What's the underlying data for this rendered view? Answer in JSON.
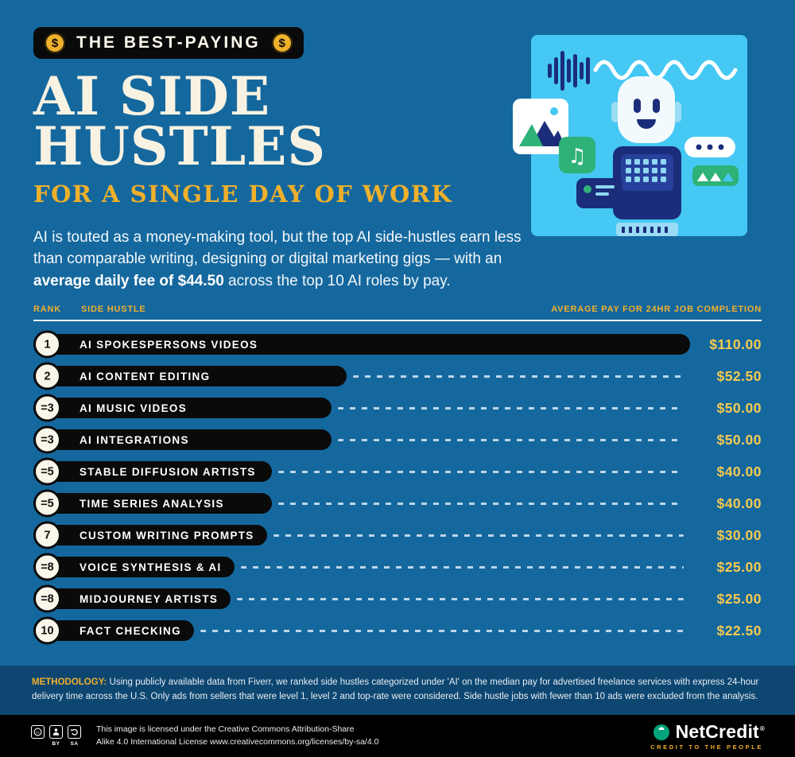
{
  "colors": {
    "bg": "#15689e",
    "gold": "#efb02c",
    "gold_light": "#f6ca50",
    "cream": "#f8f2e2",
    "black": "#0a0a0a",
    "navy": "#1b2d7a",
    "green": "#2eb277",
    "panel": "#45c8f3",
    "methodology_bg": "#0d4671",
    "dash": "#cfe3f0",
    "footer_bg": "#000000",
    "brand_green": "#00a37a"
  },
  "header": {
    "badge": {
      "label": "THE BEST-PAYING",
      "coin_symbol": "$"
    },
    "title_line1": "AI SIDE",
    "title_line2": "HUSTLES",
    "subtitle": "FOR A SINGLE DAY OF WORK",
    "intro_pre": "AI is touted as a money-making tool, but the top AI side-hustles earn less than comparable writing, designing or digital marketing gigs — with an ",
    "intro_bold": "average daily fee of $44.50",
    "intro_post": " across the top 10 AI roles by pay."
  },
  "chart_data": {
    "type": "bar",
    "orientation": "horizontal",
    "title": "The Best-Paying AI Side Hustles for a Single Day of Work",
    "unit": "USD per 24-hour job completion",
    "max_value": 110,
    "columns": {
      "rank": "RANK",
      "label": "SIDE HUSTLE",
      "value": "AVERAGE PAY FOR 24HR JOB COMPLETION"
    },
    "rows": [
      {
        "rank": "1",
        "label": "AI SPOKESPERSONS VIDEOS",
        "value": 110,
        "display": "$110.00"
      },
      {
        "rank": "2",
        "label": "AI CONTENT EDITING",
        "value": 52.5,
        "display": "$52.50"
      },
      {
        "rank": "=3",
        "label": "AI MUSIC VIDEOS",
        "value": 50,
        "display": "$50.00"
      },
      {
        "rank": "=3",
        "label": "AI INTEGRATIONS",
        "value": 50,
        "display": "$50.00"
      },
      {
        "rank": "=5",
        "label": "STABLE DIFFUSION ARTISTS",
        "value": 40,
        "display": "$40.00"
      },
      {
        "rank": "=5",
        "label": "TIME SERIES ANALYSIS",
        "value": 40,
        "display": "$40.00"
      },
      {
        "rank": "7",
        "label": "CUSTOM WRITING PROMPTS",
        "value": 30,
        "display": "$30.00"
      },
      {
        "rank": "=8",
        "label": "VOICE SYNTHESIS & AI",
        "value": 25,
        "display": "$25.00"
      },
      {
        "rank": "=8",
        "label": "MIDJOURNEY ARTISTS",
        "value": 25,
        "display": "$25.00"
      },
      {
        "rank": "10",
        "label": "FACT CHECKING",
        "value": 22.5,
        "display": "$22.50"
      }
    ]
  },
  "methodology": {
    "label": "METHODOLOGY:",
    "text": "Using publicly available data from Fiverr, we ranked side hustles categorized under 'AI' on the median pay for advertised freelance services with express 24-hour delivery time across the U.S. Only ads from sellers that were level 1, level 2 and top-rate were considered. Side hustle jobs with fewer than 10 ads were excluded from the analysis."
  },
  "footer": {
    "license_line1": "This image is licensed under the Creative Commons Attribution-Share",
    "license_line2": "Alike 4.0 International License www.creativecommons.org/licenses/by-sa/4.0",
    "cc_by": "BY",
    "cc_sa": "SA",
    "brand": "NetCredit",
    "brand_reg": "®",
    "brand_tagline": "CREDIT TO THE PEOPLE"
  }
}
